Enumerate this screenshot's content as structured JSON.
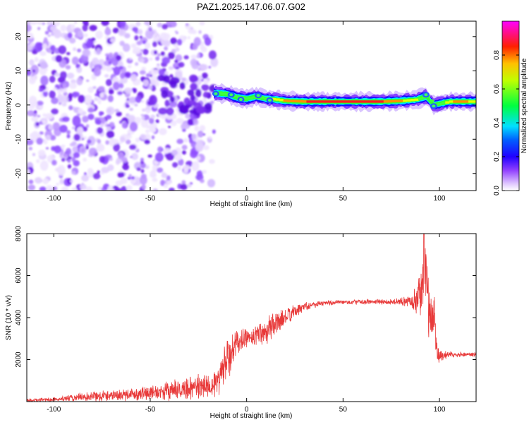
{
  "title": "PAZ1.2025.147.06.07.G02",
  "chart_data": [
    {
      "type": "heatmap",
      "xlabel": "Height of straight line (km)",
      "ylabel": "Frequency (Hz)",
      "xlim": [
        -114,
        119
      ],
      "ylim": [
        -25,
        24.5
      ],
      "x_ticks": [
        -100,
        -50,
        0,
        50,
        100
      ],
      "y_ticks": [
        -20,
        -10,
        0,
        10,
        20
      ],
      "x_tick_labels": [
        "-100",
        "-50",
        "0",
        "50",
        "100"
      ],
      "y_tick_labels": [
        "-20",
        "-10",
        "0",
        "10",
        "20"
      ],
      "colorbar": {
        "label": "Normalized spectral amplitude",
        "range": [
          0,
          1
        ],
        "ticks": [
          0,
          0.2,
          0.4,
          0.6,
          0.8
        ],
        "tick_labels": [
          "0.0",
          "0.2",
          "0.4",
          "0.6",
          "0.8"
        ],
        "colormap": [
          "#ffffff",
          "#e8d8ff",
          "#a060ff",
          "#5000ff",
          "#0000ff",
          "#00ffff",
          "#00ff00",
          "#ffff00",
          "#ff8000",
          "#ff0000",
          "#ff00ff"
        ]
      },
      "noise_region": {
        "x": [
          -114,
          -18
        ],
        "y": [
          -25,
          24.5
        ]
      },
      "signal_ridge": [
        {
          "x": -17,
          "y": 3.5,
          "amp": 0.35
        },
        {
          "x": -10,
          "y": 3.2,
          "amp": 0.45
        },
        {
          "x": -5,
          "y": 2.2,
          "amp": 0.4
        },
        {
          "x": 0,
          "y": 1.8,
          "amp": 0.5
        },
        {
          "x": 5,
          "y": 2.5,
          "amp": 0.45
        },
        {
          "x": 10,
          "y": 1.8,
          "amp": 0.55
        },
        {
          "x": 15,
          "y": 1.6,
          "amp": 0.6
        },
        {
          "x": 20,
          "y": 1.2,
          "amp": 0.75
        },
        {
          "x": 30,
          "y": 1.0,
          "amp": 0.85
        },
        {
          "x": 40,
          "y": 1.0,
          "amp": 0.88
        },
        {
          "x": 50,
          "y": 1.0,
          "amp": 0.9
        },
        {
          "x": 60,
          "y": 1.0,
          "amp": 0.9
        },
        {
          "x": 70,
          "y": 1.0,
          "amp": 0.85
        },
        {
          "x": 80,
          "y": 1.2,
          "amp": 0.7
        },
        {
          "x": 88,
          "y": 1.6,
          "amp": 0.55
        },
        {
          "x": 93,
          "y": 2.5,
          "amp": 0.4
        },
        {
          "x": 97,
          "y": 0.0,
          "amp": 0.35
        },
        {
          "x": 105,
          "y": 1.0,
          "amp": 0.7
        },
        {
          "x": 113,
          "y": 1.0,
          "amp": 0.75
        },
        {
          "x": 119,
          "y": 1.0,
          "amp": 0.6
        }
      ]
    },
    {
      "type": "line",
      "xlabel": "Height of straight line (km)",
      "ylabel": "SNR (10 * v/v)",
      "xlim": [
        -114,
        119
      ],
      "ylim": [
        0,
        8000
      ],
      "x_ticks": [
        -100,
        -50,
        0,
        50,
        100
      ],
      "y_ticks": [
        2000,
        4000,
        6000,
        8000
      ],
      "x_tick_labels": [
        "-100",
        "-50",
        "0",
        "50",
        "100"
      ],
      "y_tick_labels": [
        "2000",
        "4000",
        "6000",
        "8000"
      ],
      "color": "#e83a3a",
      "series_profile": [
        {
          "x": -114,
          "mean": 60,
          "noise": 80
        },
        {
          "x": -100,
          "mean": 100,
          "noise": 120
        },
        {
          "x": -80,
          "mean": 250,
          "noise": 300
        },
        {
          "x": -60,
          "mean": 350,
          "noise": 350
        },
        {
          "x": -40,
          "mean": 500,
          "noise": 500
        },
        {
          "x": -25,
          "mean": 700,
          "noise": 700
        },
        {
          "x": -15,
          "mean": 900,
          "noise": 800
        },
        {
          "x": -10,
          "mean": 2000,
          "noise": 1400
        },
        {
          "x": -5,
          "mean": 2800,
          "noise": 700
        },
        {
          "x": 0,
          "mean": 3000,
          "noise": 500
        },
        {
          "x": 10,
          "mean": 3400,
          "noise": 800
        },
        {
          "x": 20,
          "mean": 4000,
          "noise": 500
        },
        {
          "x": 30,
          "mean": 4550,
          "noise": 250
        },
        {
          "x": 40,
          "mean": 4700,
          "noise": 150
        },
        {
          "x": 60,
          "mean": 4750,
          "noise": 130
        },
        {
          "x": 80,
          "mean": 4750,
          "noise": 200
        },
        {
          "x": 86,
          "mean": 4800,
          "noise": 400
        },
        {
          "x": 90,
          "mean": 5000,
          "noise": 1200
        },
        {
          "x": 93,
          "mean": 6500,
          "noise": 1600
        },
        {
          "x": 95,
          "mean": 3500,
          "noise": 1500
        },
        {
          "x": 97,
          "mean": 4500,
          "noise": 1500
        },
        {
          "x": 99,
          "mean": 2200,
          "noise": 500
        },
        {
          "x": 105,
          "mean": 2250,
          "noise": 150
        },
        {
          "x": 119,
          "mean": 2250,
          "noise": 120
        }
      ],
      "peak": {
        "x": 92,
        "y": 8000
      }
    }
  ]
}
